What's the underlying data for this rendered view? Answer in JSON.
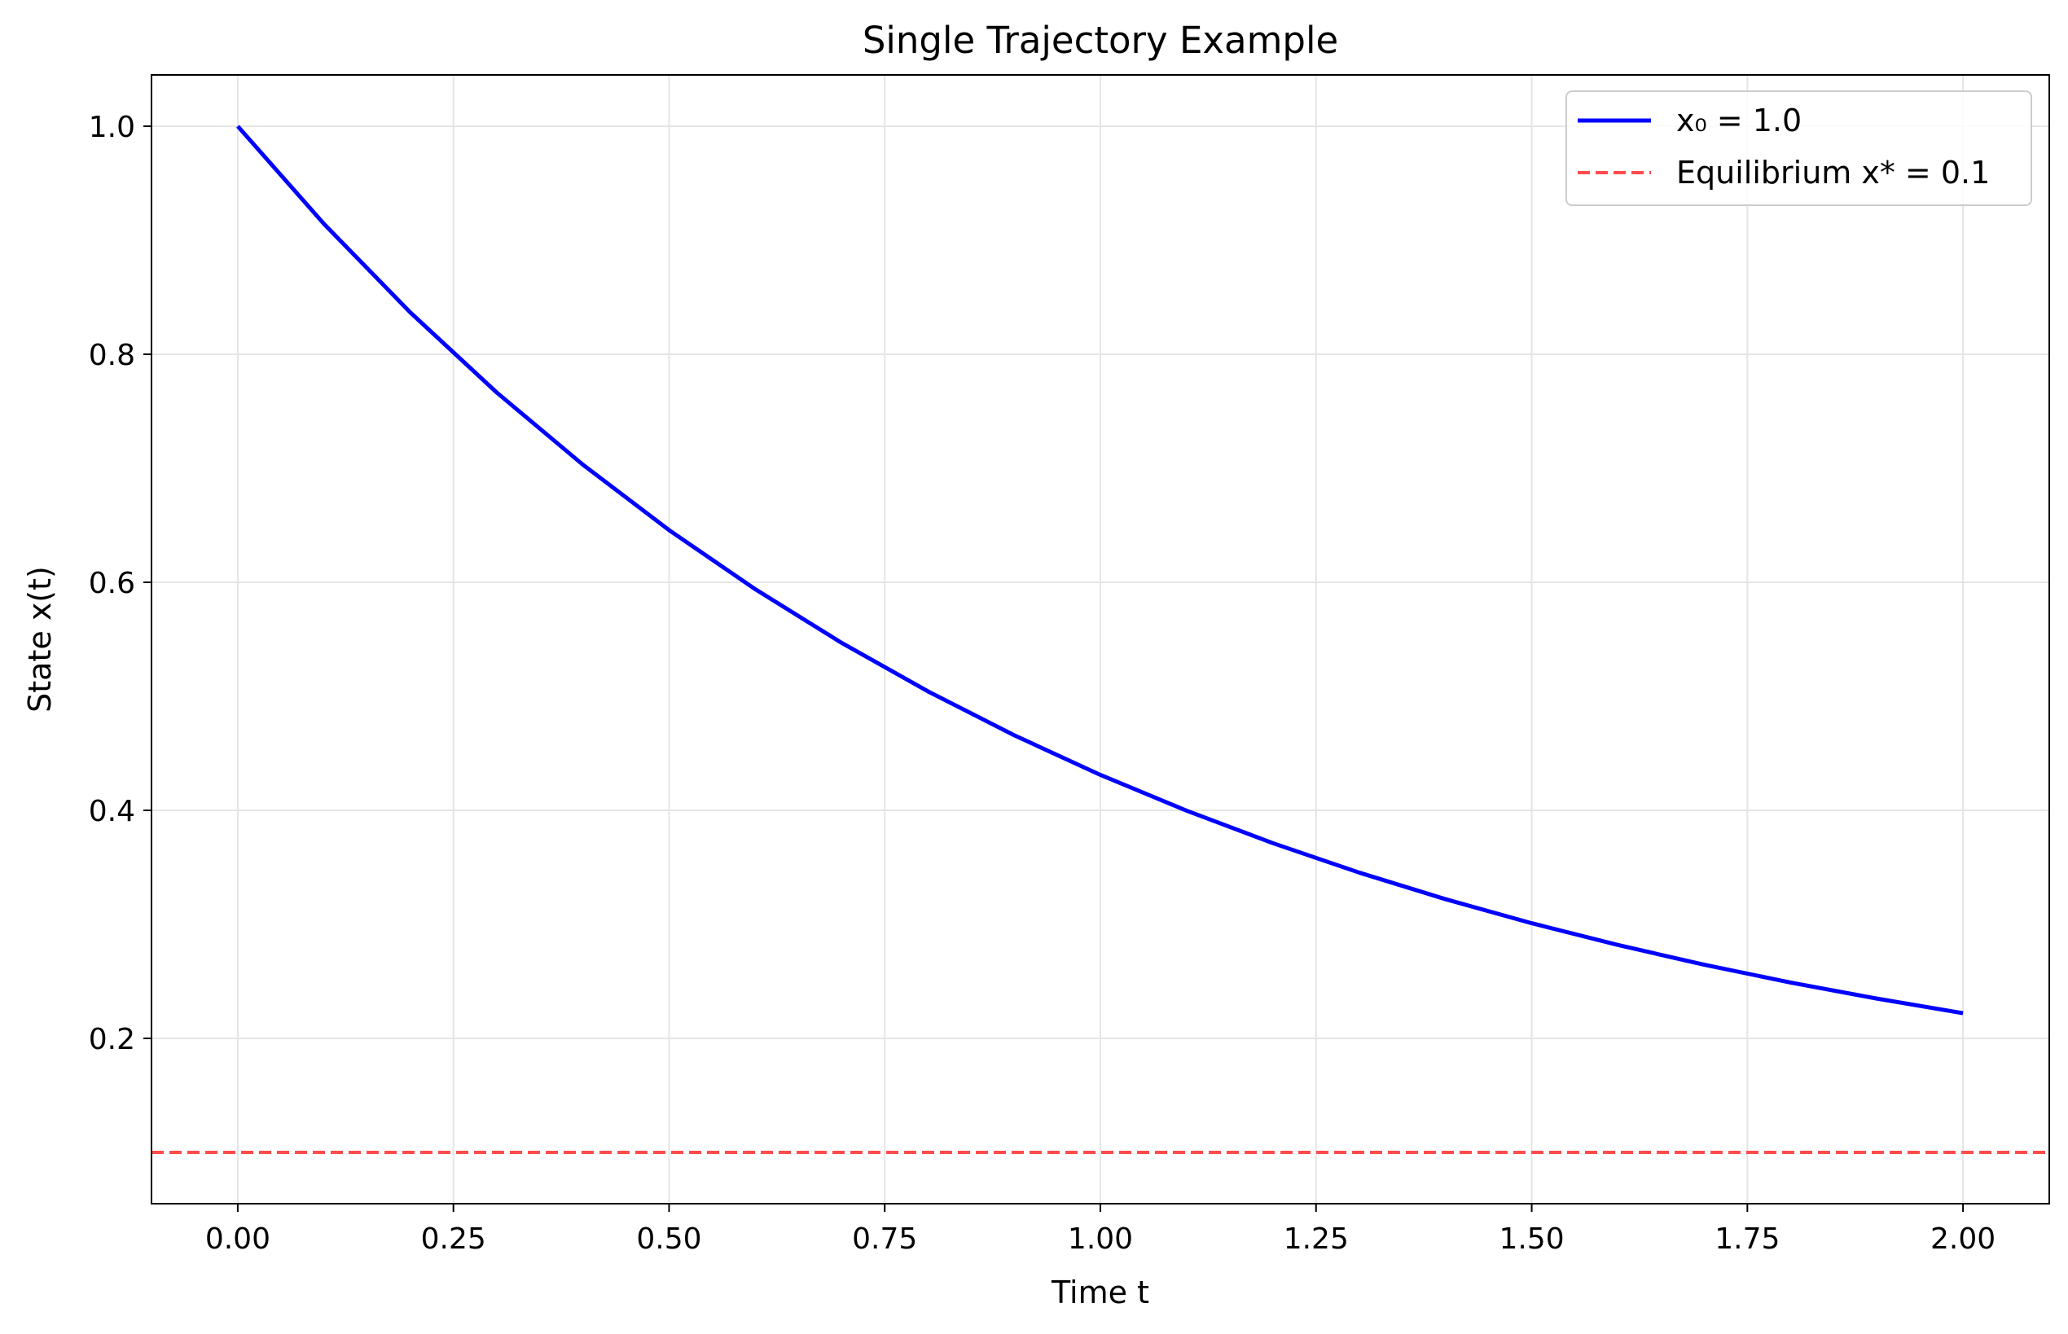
{
  "chart_data": {
    "type": "line",
    "title": "Single Trajectory Example",
    "xlabel": "Time t",
    "ylabel": "State x(t)",
    "xlim": [
      -0.1,
      2.1
    ],
    "ylim": [
      0.055,
      1.045
    ],
    "xticks": [
      0.0,
      0.25,
      0.5,
      0.75,
      1.0,
      1.25,
      1.5,
      1.75,
      2.0
    ],
    "xtick_labels": [
      "0.00",
      "0.25",
      "0.50",
      "0.75",
      "1.00",
      "1.25",
      "1.50",
      "1.75",
      "2.00"
    ],
    "yticks": [
      0.2,
      0.4,
      0.6,
      0.8,
      1.0
    ],
    "ytick_labels": [
      "0.2",
      "0.4",
      "0.6",
      "0.8",
      "1.0"
    ],
    "grid": true,
    "legend_position": "top-right",
    "series": [
      {
        "name": "x₀ = 1.0",
        "color": "#0000ff",
        "style": "solid",
        "x": [
          0.0,
          0.1,
          0.2,
          0.3,
          0.4,
          0.5,
          0.6,
          0.7,
          0.8,
          0.9,
          1.0,
          1.1,
          1.2,
          1.3,
          1.4,
          1.5,
          1.6,
          1.7,
          1.8,
          1.9,
          2.0
        ],
        "y": [
          1.0,
          0.9143,
          0.8367,
          0.7666,
          0.7032,
          0.6458,
          0.5939,
          0.5469,
          0.5044,
          0.4659,
          0.4311,
          0.3997,
          0.3712,
          0.3454,
          0.3221,
          0.301,
          0.2819,
          0.2646,
          0.249,
          0.2349,
          0.2221
        ]
      },
      {
        "name": "Equilibrium x* = 0.1",
        "color": "#ff4c4c",
        "style": "dashed",
        "hline": 0.1
      }
    ]
  }
}
